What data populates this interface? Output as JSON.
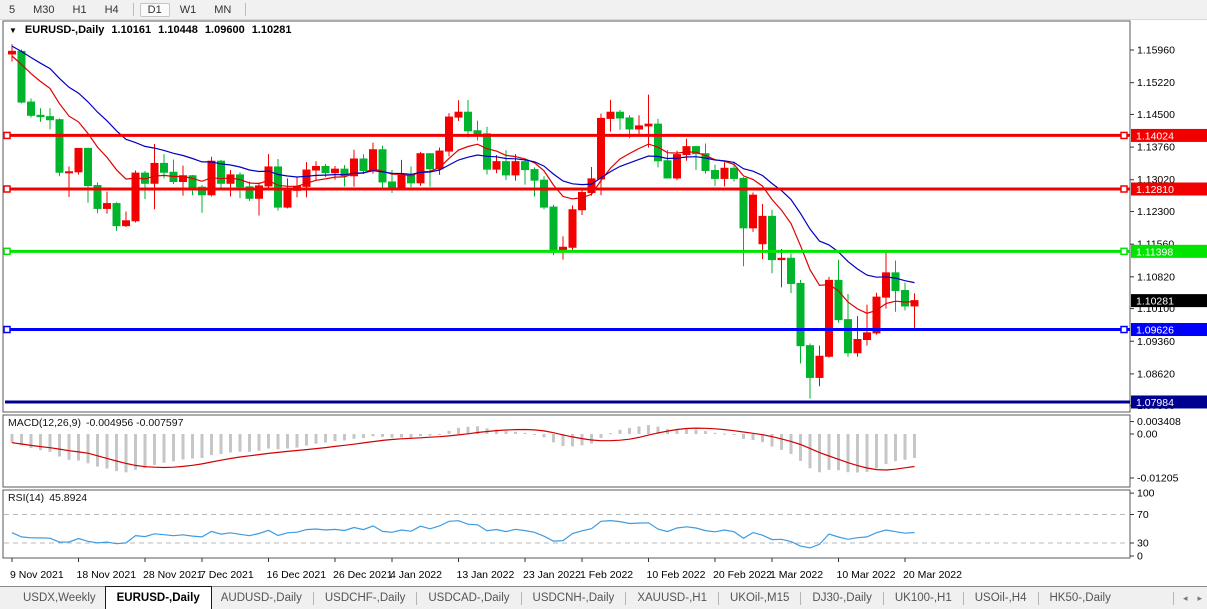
{
  "toolbar": {
    "timeframes": [
      {
        "label": "5"
      },
      {
        "label": "M30"
      },
      {
        "label": "H1"
      },
      {
        "label": "H4"
      },
      {
        "label": "D1"
      },
      {
        "label": "W1"
      },
      {
        "label": "MN"
      }
    ],
    "active": "D1"
  },
  "chart_header": {
    "dropdown_icon": "▼",
    "symbol": "EURUSD-,Daily",
    "open": "1.10161",
    "high": "1.10448",
    "low": "1.09600",
    "close": "1.10281"
  },
  "price_axis": {
    "ticks": [
      "1.15960",
      "1.15220",
      "1.14500",
      "1.13760",
      "1.13020",
      "1.12300",
      "1.11560",
      "1.10820",
      "1.10100",
      "1.09360",
      "1.08620",
      "1.07900"
    ]
  },
  "hlines": [
    {
      "label": "1.14024",
      "value": 1.14024,
      "color": "#f20000",
      "width": 3,
      "handles": true
    },
    {
      "label": "1.12810",
      "value": 1.1281,
      "color": "#f20000",
      "width": 3,
      "handles": true
    },
    {
      "label": "1.11398",
      "value": 1.11398,
      "color": "#00e400",
      "width": 3,
      "handles": true
    },
    {
      "label": "1.09626",
      "value": 1.09626,
      "color": "#0000ff",
      "width": 3,
      "handles": true
    },
    {
      "label": "1.07984",
      "value": 1.07984,
      "color": "#000090",
      "width": 3,
      "handles": false
    }
  ],
  "current_price": {
    "label": "1.10281",
    "value": 1.10281,
    "badge_color": "#000000"
  },
  "macd_panel": {
    "title": "MACD(12,26,9)",
    "values": "-0.004956 -0.007597",
    "axis": [
      {
        "label": "0.003408",
        "value": 0.003408
      },
      {
        "label": "0.00",
        "value": 0
      },
      {
        "label": "-0.01205",
        "value": -0.01205
      }
    ],
    "histogram_color": "#c6c6c6",
    "signal_color": "#d40000"
  },
  "rsi_panel": {
    "title": "RSI(14)",
    "value": "45.8924",
    "axis": [
      {
        "label": "100",
        "value": 100
      },
      {
        "label": "70",
        "value": 70
      },
      {
        "label": "30",
        "value": 30
      },
      {
        "label": "0",
        "value": 0
      }
    ],
    "levels": [
      70,
      30
    ],
    "line_color": "#3e9be0"
  },
  "date_axis": {
    "labels": [
      {
        "text": "9 Nov 2021",
        "index": 0
      },
      {
        "text": "18 Nov 2021",
        "index": 7
      },
      {
        "text": "28 Nov 2021",
        "index": 14
      },
      {
        "text": "7 Dec 2021",
        "index": 20
      },
      {
        "text": "16 Dec 2021",
        "index": 27
      },
      {
        "text": "26 Dec 2021",
        "index": 34
      },
      {
        "text": "4 Jan 2022",
        "index": 40
      },
      {
        "text": "13 Jan 2022",
        "index": 47
      },
      {
        "text": "23 Jan 2022",
        "index": 54
      },
      {
        "text": "1 Feb 2022",
        "index": 60
      },
      {
        "text": "10 Feb 2022",
        "index": 67
      },
      {
        "text": "20 Feb 2022",
        "index": 74
      },
      {
        "text": "1 Mar 2022",
        "index": 80
      },
      {
        "text": "10 Mar 2022",
        "index": 87
      },
      {
        "text": "20 Mar 2022",
        "index": 94
      }
    ]
  },
  "tabs": {
    "items": [
      "USDX,Weekly",
      "EURUSD-,Daily",
      "AUDUSD-,Daily",
      "USDCHF-,Daily",
      "USDCAD-,Daily",
      "USDCNH-,Daily",
      "XAUUSD-,H1",
      "UKOil-,M15",
      "DJ30-,Daily",
      "UK100-,H1",
      "USOil-,H4",
      "HK50-,Daily"
    ],
    "active_index": 1,
    "scroll_left": "◂",
    "scroll_right": "▸"
  },
  "chart_data": {
    "type": "candlestick",
    "symbol": "EURUSD-",
    "timeframe": "Daily",
    "up_color": "#f40000",
    "down_color": "#00b42c",
    "note": "red = bullish, green = bearish; last candle OHLC equals header values",
    "ohlc_last": {
      "open": 1.10161,
      "high": 1.10448,
      "low": 1.096,
      "close": 1.10281
    },
    "moving_averages": [
      {
        "name": "fast",
        "type": "ema",
        "period": 10,
        "color": "#e00000"
      },
      {
        "name": "slow",
        "type": "ema",
        "period": 20,
        "color": "#0000c0"
      }
    ],
    "macd": {
      "fast": 12,
      "slow": 26,
      "signal_period": 9,
      "current": -0.004956,
      "current_signal": -0.007597,
      "scale_max": 0.003408,
      "scale_min": -0.01205
    },
    "rsi": {
      "period": 14,
      "current": 45.8924,
      "scale": [
        0,
        30,
        70,
        100
      ]
    },
    "candles": [
      [
        "9 Nov 2021",
        1.1587,
        1.1609,
        1.157,
        1.1593
      ],
      [
        "10 Nov 2021",
        1.1593,
        1.1597,
        1.1475,
        1.1478
      ],
      [
        "11 Nov 2021",
        1.1478,
        1.1486,
        1.1443,
        1.1448
      ],
      [
        "12 Nov 2021",
        1.1448,
        1.1464,
        1.1433,
        1.1445
      ],
      [
        "15 Nov 2021",
        1.1445,
        1.1464,
        1.1416,
        1.1438
      ],
      [
        "16 Nov 2021",
        1.1438,
        1.1441,
        1.131,
        1.1319
      ],
      [
        "17 Nov 2021",
        1.1319,
        1.1332,
        1.1263,
        1.132
      ],
      [
        "18 Nov 2021",
        1.132,
        1.1374,
        1.1314,
        1.1373
      ],
      [
        "19 Nov 2021",
        1.1373,
        1.1375,
        1.125,
        1.1289
      ],
      [
        "22 Nov 2021",
        1.1289,
        1.1296,
        1.1226,
        1.1237
      ],
      [
        "23 Nov 2021",
        1.1237,
        1.1275,
        1.1225,
        1.1248
      ],
      [
        "24 Nov 2021",
        1.1248,
        1.1251,
        1.1186,
        1.1198
      ],
      [
        "25 Nov 2021",
        1.1198,
        1.123,
        1.1195,
        1.1209
      ],
      [
        "26 Nov 2021",
        1.1209,
        1.1323,
        1.1205,
        1.1317
      ],
      [
        "29 Nov 2021",
        1.1317,
        1.1322,
        1.1258,
        1.1294
      ],
      [
        "30 Nov 2021",
        1.1294,
        1.1383,
        1.1235,
        1.1339
      ],
      [
        "1 Dec 2021",
        1.1339,
        1.136,
        1.1305,
        1.1319
      ],
      [
        "2 Dec 2021",
        1.1319,
        1.1348,
        1.1292,
        1.1298
      ],
      [
        "3 Dec 2021",
        1.1298,
        1.1334,
        1.1266,
        1.1311
      ],
      [
        "6 Dec 2021",
        1.1311,
        1.1313,
        1.1267,
        1.1285
      ],
      [
        "7 Dec 2021",
        1.1285,
        1.129,
        1.1227,
        1.1268
      ],
      [
        "8 Dec 2021",
        1.1268,
        1.1354,
        1.1264,
        1.1344
      ],
      [
        "9 Dec 2021",
        1.1344,
        1.1347,
        1.128,
        1.1294
      ],
      [
        "10 Dec 2021",
        1.1294,
        1.1324,
        1.1264,
        1.1313
      ],
      [
        "13 Dec 2021",
        1.1313,
        1.1319,
        1.126,
        1.1286
      ],
      [
        "14 Dec 2021",
        1.1286,
        1.1298,
        1.1254,
        1.126
      ],
      [
        "15 Dec 2021",
        1.126,
        1.1296,
        1.1221,
        1.1288
      ],
      [
        "16 Dec 2021",
        1.1288,
        1.136,
        1.128,
        1.1331
      ],
      [
        "17 Dec 2021",
        1.1331,
        1.1349,
        1.1232,
        1.124
      ],
      [
        "20 Dec 2021",
        1.124,
        1.1305,
        1.1237,
        1.1278
      ],
      [
        "21 Dec 2021",
        1.1278,
        1.1308,
        1.1262,
        1.1287
      ],
      [
        "22 Dec 2021",
        1.1287,
        1.1342,
        1.1262,
        1.1324
      ],
      [
        "23 Dec 2021",
        1.1324,
        1.1344,
        1.13,
        1.1332
      ],
      [
        "24 Dec 2021",
        1.1332,
        1.1338,
        1.1308,
        1.1318
      ],
      [
        "27 Dec 2021",
        1.1318,
        1.1333,
        1.1302,
        1.1326
      ],
      [
        "28 Dec 2021",
        1.1326,
        1.1335,
        1.1287,
        1.1311
      ],
      [
        "29 Dec 2021",
        1.1311,
        1.137,
        1.1286,
        1.1349
      ],
      [
        "30 Dec 2021",
        1.1349,
        1.136,
        1.1315,
        1.1323
      ],
      [
        "31 Dec 2021",
        1.1323,
        1.1386,
        1.1316,
        1.137
      ],
      [
        "3 Jan 2022",
        1.137,
        1.1379,
        1.1279,
        1.1297
      ],
      [
        "4 Jan 2022",
        1.1297,
        1.1324,
        1.1272,
        1.1285
      ],
      [
        "5 Jan 2022",
        1.1285,
        1.1347,
        1.128,
        1.1312
      ],
      [
        "6 Jan 2022",
        1.1312,
        1.1332,
        1.1285,
        1.1295
      ],
      [
        "7 Jan 2022",
        1.1295,
        1.1365,
        1.1288,
        1.1361
      ],
      [
        "10 Jan 2022",
        1.1361,
        1.1362,
        1.1286,
        1.1327
      ],
      [
        "11 Jan 2022",
        1.1327,
        1.1375,
        1.1313,
        1.1367
      ],
      [
        "12 Jan 2022",
        1.1367,
        1.1453,
        1.1355,
        1.1444
      ],
      [
        "13 Jan 2022",
        1.1444,
        1.1482,
        1.1435,
        1.1455
      ],
      [
        "14 Jan 2022",
        1.1455,
        1.1483,
        1.1398,
        1.1413
      ],
      [
        "17 Jan 2022",
        1.1413,
        1.1436,
        1.1391,
        1.1406
      ],
      [
        "18 Jan 2022",
        1.1406,
        1.1422,
        1.1314,
        1.1326
      ],
      [
        "19 Jan 2022",
        1.1326,
        1.1358,
        1.1317,
        1.1343
      ],
      [
        "20 Jan 2022",
        1.1343,
        1.1369,
        1.1301,
        1.1313
      ],
      [
        "21 Jan 2022",
        1.1313,
        1.136,
        1.13,
        1.1343
      ],
      [
        "24 Jan 2022",
        1.1343,
        1.1349,
        1.1291,
        1.1325
      ],
      [
        "25 Jan 2022",
        1.1325,
        1.133,
        1.1264,
        1.1301
      ],
      [
        "26 Jan 2022",
        1.1301,
        1.131,
        1.1235,
        1.124
      ],
      [
        "27 Jan 2022",
        1.124,
        1.1245,
        1.1131,
        1.1144
      ],
      [
        "28 Jan 2022",
        1.1144,
        1.1174,
        1.1121,
        1.1149
      ],
      [
        "31 Jan 2022",
        1.1149,
        1.1244,
        1.1141,
        1.1234
      ],
      [
        "1 Feb 2022",
        1.1234,
        1.1279,
        1.1222,
        1.1273
      ],
      [
        "2 Feb 2022",
        1.1273,
        1.1331,
        1.1266,
        1.1304
      ],
      [
        "3 Feb 2022",
        1.1304,
        1.1452,
        1.1267,
        1.1441
      ],
      [
        "4 Feb 2022",
        1.1441,
        1.1483,
        1.1411,
        1.1455
      ],
      [
        "7 Feb 2022",
        1.1455,
        1.146,
        1.1415,
        1.1442
      ],
      [
        "8 Feb 2022",
        1.1442,
        1.1448,
        1.1396,
        1.1417
      ],
      [
        "9 Feb 2022",
        1.1417,
        1.1448,
        1.1403,
        1.1424
      ],
      [
        "10 Feb 2022",
        1.1424,
        1.1495,
        1.1375,
        1.1428
      ],
      [
        "11 Feb 2022",
        1.1428,
        1.144,
        1.133,
        1.1345
      ],
      [
        "14 Feb 2022",
        1.1345,
        1.1369,
        1.1305,
        1.1306
      ],
      [
        "15 Feb 2022",
        1.1306,
        1.1368,
        1.1301,
        1.1359
      ],
      [
        "16 Feb 2022",
        1.1359,
        1.1395,
        1.1345,
        1.1377
      ],
      [
        "17 Feb 2022",
        1.1377,
        1.1379,
        1.1324,
        1.1361
      ],
      [
        "18 Feb 2022",
        1.1361,
        1.1384,
        1.1316,
        1.1323
      ],
      [
        "21 Feb 2022",
        1.1323,
        1.1336,
        1.1288,
        1.1305
      ],
      [
        "22 Feb 2022",
        1.1305,
        1.1342,
        1.1287,
        1.1328
      ],
      [
        "23 Feb 2022",
        1.1328,
        1.1343,
        1.1298,
        1.1305
      ],
      [
        "24 Feb 2022",
        1.1305,
        1.1308,
        1.1106,
        1.1193
      ],
      [
        "25 Feb 2022",
        1.1193,
        1.1273,
        1.1184,
        1.1267
      ],
      [
        "28 Feb 2022",
        1.1157,
        1.1247,
        1.1122,
        1.1219
      ],
      [
        "1 Mar 2022",
        1.1219,
        1.1234,
        1.109,
        1.1121
      ],
      [
        "2 Mar 2022",
        1.1121,
        1.1145,
        1.1058,
        1.1124
      ],
      [
        "3 Mar 2022",
        1.1124,
        1.1135,
        1.1045,
        1.1067
      ],
      [
        "4 Mar 2022",
        1.1067,
        1.1075,
        1.0886,
        1.0926
      ],
      [
        "7 Mar 2022",
        1.0926,
        1.0931,
        1.0806,
        1.0854
      ],
      [
        "8 Mar 2022",
        1.0854,
        1.0926,
        1.0834,
        1.0902
      ],
      [
        "9 Mar 2022",
        1.0902,
        1.1082,
        1.0899,
        1.1074
      ],
      [
        "10 Mar 2022",
        1.1074,
        1.1121,
        1.0978,
        1.0985
      ],
      [
        "11 Mar 2022",
        1.0985,
        1.1043,
        1.0901,
        1.091
      ],
      [
        "14 Mar 2022",
        1.091,
        1.0993,
        1.0901,
        1.094
      ],
      [
        "15 Mar 2022",
        1.094,
        1.1019,
        1.0926,
        1.0955
      ],
      [
        "16 Mar 2022",
        1.0955,
        1.1046,
        1.0951,
        1.1036
      ],
      [
        "17 Mar 2022",
        1.1036,
        1.1138,
        1.101,
        1.1091
      ],
      [
        "18 Mar 2022",
        1.1091,
        1.1119,
        1.1003,
        1.1051
      ],
      [
        "21 Mar 2022",
        1.1051,
        1.1069,
        1.1006,
        1.1016
      ],
      [
        "22 Mar 2022",
        1.10161,
        1.10448,
        1.096,
        1.10281
      ]
    ]
  }
}
